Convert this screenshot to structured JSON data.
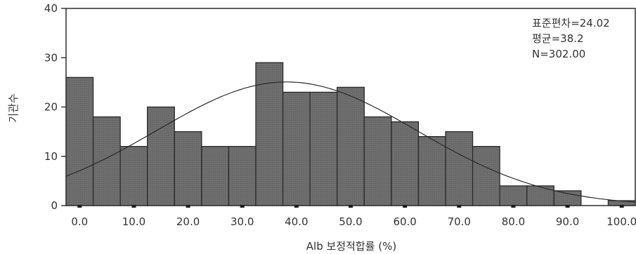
{
  "chart_data": {
    "type": "bar",
    "subtype": "histogram-with-normal-curve",
    "xlabel": "Alb 보정적합률 (%)",
    "ylabel": "기관수",
    "ylim": [
      0,
      40
    ],
    "xlim": [
      -2.5,
      102.5
    ],
    "y_ticks": [
      "0",
      "10",
      "20",
      "30",
      "40"
    ],
    "x_ticks": [
      "0.0",
      "10.0",
      "20.0",
      "30.0",
      "40.0",
      "50.0",
      "60.0",
      "70.0",
      "80.0",
      "90.0",
      "100.0"
    ],
    "bin_width": 5,
    "bins": [
      {
        "x0": -2.5,
        "x1": 2.5,
        "value": 26
      },
      {
        "x0": 2.5,
        "x1": 7.5,
        "value": 18
      },
      {
        "x0": 7.5,
        "x1": 12.5,
        "value": 12
      },
      {
        "x0": 12.5,
        "x1": 17.5,
        "value": 20
      },
      {
        "x0": 17.5,
        "x1": 22.5,
        "value": 15
      },
      {
        "x0": 22.5,
        "x1": 27.5,
        "value": 12
      },
      {
        "x0": 27.5,
        "x1": 32.5,
        "value": 12
      },
      {
        "x0": 32.5,
        "x1": 37.5,
        "value": 29
      },
      {
        "x0": 37.5,
        "x1": 42.5,
        "value": 23
      },
      {
        "x0": 42.5,
        "x1": 47.5,
        "value": 23
      },
      {
        "x0": 47.5,
        "x1": 52.5,
        "value": 24
      },
      {
        "x0": 52.5,
        "x1": 57.5,
        "value": 18
      },
      {
        "x0": 57.5,
        "x1": 62.5,
        "value": 17
      },
      {
        "x0": 62.5,
        "x1": 67.5,
        "value": 14
      },
      {
        "x0": 67.5,
        "x1": 72.5,
        "value": 15
      },
      {
        "x0": 72.5,
        "x1": 77.5,
        "value": 12
      },
      {
        "x0": 77.5,
        "x1": 82.5,
        "value": 4
      },
      {
        "x0": 82.5,
        "x1": 87.5,
        "value": 4
      },
      {
        "x0": 87.5,
        "x1": 92.5,
        "value": 3
      },
      {
        "x0": 97.5,
        "x1": 102.5,
        "value": 1
      }
    ],
    "normal_curve": {
      "mean": 38.2,
      "sd": 24.02,
      "n": 302
    },
    "stats": {
      "std_label": "표준편차=24.02",
      "mean_label": "평균=38.2",
      "n_label": "N=302.00"
    },
    "colors": {
      "bar_fill": "#6e6e6e",
      "bar_stroke": "#2a2a2a",
      "curve": "#2a2a2a",
      "axis": "#1e1e1e"
    }
  }
}
